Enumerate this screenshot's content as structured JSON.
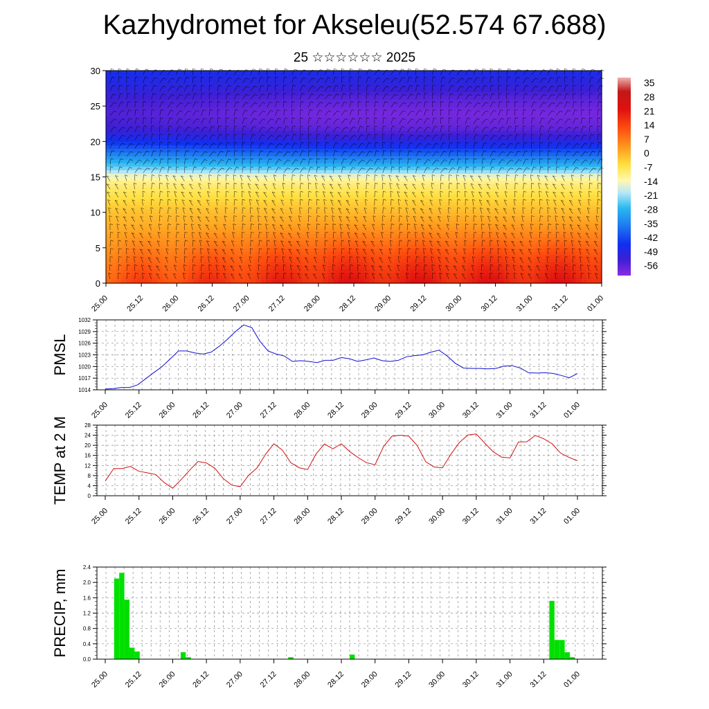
{
  "title": "Kazhydromet for Akseleu(52.574 67.688)",
  "subtitle": "25 ☆☆☆☆☆☆ 2025",
  "colors": {
    "pmsl_line": "#1010d0",
    "temp_line": "#d01010",
    "precip_bar": "#00e000",
    "grid": "#888888"
  },
  "chart_data": [
    {
      "type": "heatmap",
      "title": "",
      "ylim": [
        0,
        30
      ],
      "y_ticks": [
        "0",
        "5",
        "10",
        "15",
        "20",
        "25",
        "30"
      ],
      "x_ticks": [
        "25.00",
        "25.12",
        "26.00",
        "26.12",
        "27.00",
        "27.12",
        "28.00",
        "28.12",
        "29.00",
        "29.12",
        "30.00",
        "30.12",
        "31.00",
        "31.12",
        "01.00"
      ],
      "colorbar_labels": [
        "35",
        "28",
        "21",
        "14",
        "7",
        "0",
        "-7",
        "-14",
        "-21",
        "-28",
        "-35",
        "-42",
        "-49",
        "-56"
      ],
      "colorbar_range": [
        -60,
        38
      ],
      "overlay": "wind barbs",
      "temperature_profile": {
        "levels": [
          0,
          2,
          4,
          6,
          8,
          10,
          12,
          14,
          15,
          16,
          18,
          20,
          22,
          24,
          26,
          28,
          30
        ],
        "values_day1": [
          14,
          11,
          8,
          5,
          2,
          0,
          -4,
          -8,
          -12,
          -20,
          -32,
          -44,
          -52,
          -54,
          -52,
          -48,
          -45
        ],
        "values_later": [
          22,
          19,
          15,
          10,
          5,
          1,
          -3,
          -8,
          -12,
          -22,
          -36,
          -48,
          -56,
          -58,
          -55,
          -50,
          -46
        ]
      }
    },
    {
      "type": "line",
      "ylabel": "PMSL",
      "ylim": [
        1014,
        1032
      ],
      "y_ticks": [
        "1014",
        "1017",
        "1020",
        "1023",
        "1026",
        "1029",
        "1032"
      ],
      "x_ticks": [
        "25.00",
        "25.12",
        "26.00",
        "26.12",
        "27.00",
        "27.12",
        "28.00",
        "28.12",
        "29.00",
        "29.12",
        "30.00",
        "30.12",
        "31.00",
        "31.12",
        "01.00"
      ],
      "series": [
        {
          "values": [
            1014.2,
            1014.3,
            1014.6,
            1014.6,
            1015.3,
            1016.9,
            1018.5,
            1020.0,
            1022.0,
            1024.0,
            1024.0,
            1023.5,
            1023.2,
            1023.7,
            1025.2,
            1027.0,
            1029.0,
            1030.7,
            1030.0,
            1026.5,
            1024.0,
            1023.2,
            1022.7,
            1021.3,
            1021.5,
            1021.3,
            1021.0,
            1021.6,
            1021.6,
            1022.3,
            1022.0,
            1021.3,
            1021.7,
            1022.2,
            1021.5,
            1021.3,
            1021.6,
            1022.5,
            1022.8,
            1023.0,
            1023.7,
            1024.2,
            1022.7,
            1020.8,
            1019.6,
            1019.5,
            1019.5,
            1019.4,
            1019.5,
            1020.1,
            1020.2,
            1019.6,
            1018.4,
            1018.3,
            1018.4,
            1018.2,
            1017.7,
            1017.1,
            1018.2
          ]
        }
      ]
    },
    {
      "type": "line",
      "ylabel": "TEMP at 2 M",
      "ylim": [
        0,
        28
      ],
      "y_ticks": [
        "0",
        "4",
        "8",
        "12",
        "16",
        "20",
        "24",
        "28"
      ],
      "x_ticks": [
        "25.00",
        "25.12",
        "26.00",
        "26.12",
        "27.00",
        "27.12",
        "28.00",
        "28.12",
        "29.00",
        "29.12",
        "30.00",
        "30.12",
        "31.00",
        "31.12",
        "01.00"
      ],
      "series": [
        {
          "values": [
            5.8,
            10.8,
            10.8,
            11.6,
            9.7,
            9.1,
            8.4,
            5.2,
            3.0,
            6.4,
            10.1,
            13.6,
            13.0,
            10.9,
            6.8,
            4.2,
            3.6,
            8.1,
            11.0,
            16.4,
            20.6,
            18.1,
            13.1,
            11.1,
            10.4,
            16.6,
            20.5,
            18.6,
            20.6,
            17.5,
            15.1,
            13.1,
            12.3,
            19.5,
            23.6,
            24.0,
            23.6,
            19.9,
            13.5,
            11.4,
            11.1,
            16.5,
            21.1,
            24.1,
            24.5,
            20.9,
            17.5,
            15.3,
            15.0,
            21.3,
            21.4,
            23.9,
            22.6,
            20.6,
            16.9,
            15.2,
            13.9
          ]
        }
      ]
    },
    {
      "type": "bar",
      "ylabel": "PRECIP, mm",
      "ylim": [
        0,
        2.4
      ],
      "y_ticks": [
        "0.0",
        "0.4",
        "0.8",
        "1.2",
        "1.6",
        "2.0",
        "2.4"
      ],
      "x_ticks": [
        "25.00",
        "25.12",
        "26.00",
        "26.12",
        "27.00",
        "27.12",
        "28.00",
        "28.12",
        "29.00",
        "29.12",
        "30.00",
        "30.12",
        "31.00",
        "31.12",
        "01.00"
      ],
      "series": [
        {
          "values": [
            0,
            0,
            2.1,
            2.25,
            1.55,
            0.3,
            0.2,
            0,
            0,
            0,
            0,
            0,
            0,
            0,
            0,
            0.18,
            0.05,
            0,
            0,
            0,
            0,
            0,
            0,
            0,
            0,
            0,
            0,
            0,
            0,
            0,
            0,
            0,
            0,
            0,
            0,
            0,
            0.05,
            0,
            0,
            0,
            0,
            0,
            0,
            0,
            0,
            0,
            0,
            0,
            0.12,
            0,
            0,
            0,
            0,
            0,
            0,
            0,
            0,
            0,
            0,
            0,
            0,
            0,
            0,
            0,
            0,
            0,
            0,
            0,
            0,
            0,
            0,
            0,
            0,
            0,
            0,
            0,
            0,
            0,
            0,
            0,
            0,
            0,
            0,
            0,
            0,
            0,
            0,
            1.52,
            0.5,
            0.5,
            0.18,
            0.05,
            0,
            0,
            0,
            0
          ]
        }
      ]
    }
  ]
}
